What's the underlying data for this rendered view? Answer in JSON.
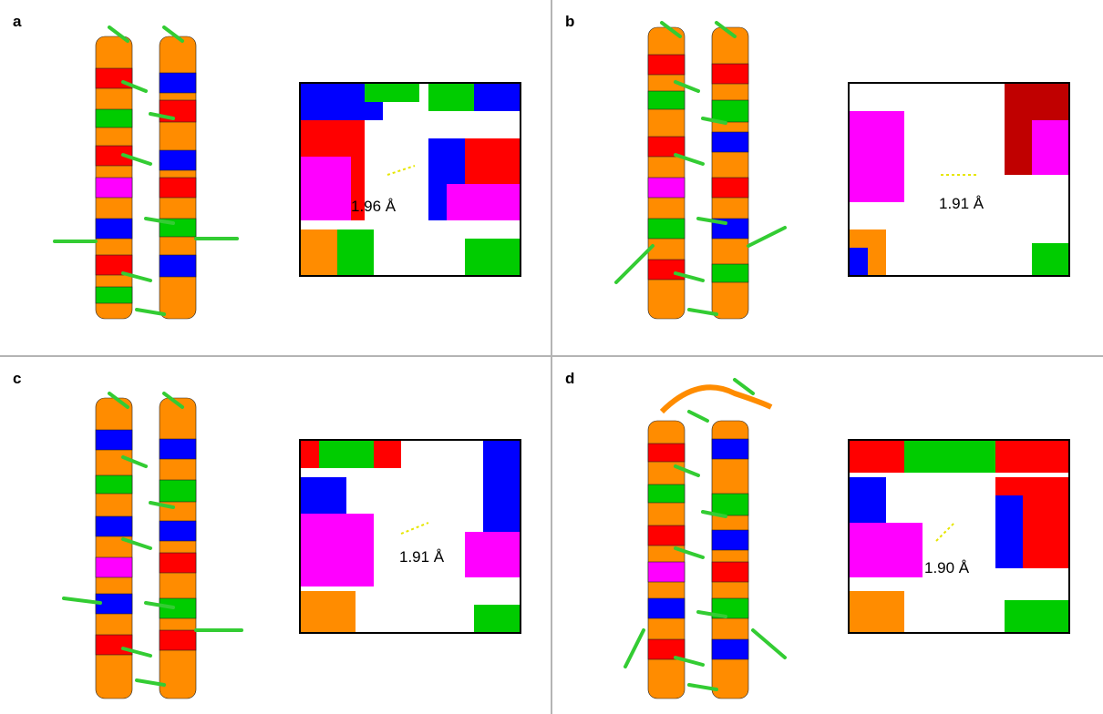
{
  "panels": [
    {
      "id": "a",
      "label": "a",
      "distance": "1.96 Å"
    },
    {
      "id": "b",
      "label": "b",
      "distance": "1.91 Å"
    },
    {
      "id": "c",
      "label": "c",
      "distance": "1.91 Å"
    },
    {
      "id": "d",
      "label": "d",
      "distance": "1.90 Å"
    }
  ],
  "colors": {
    "orange": "#ff8c00",
    "red": "#ff0000",
    "blue": "#0000ff",
    "green": "#00cc00",
    "magenta": "#ff00ff",
    "stick_green": "#33cc33",
    "hbond": "#e6e600",
    "divider": "#b4b4b4"
  }
}
